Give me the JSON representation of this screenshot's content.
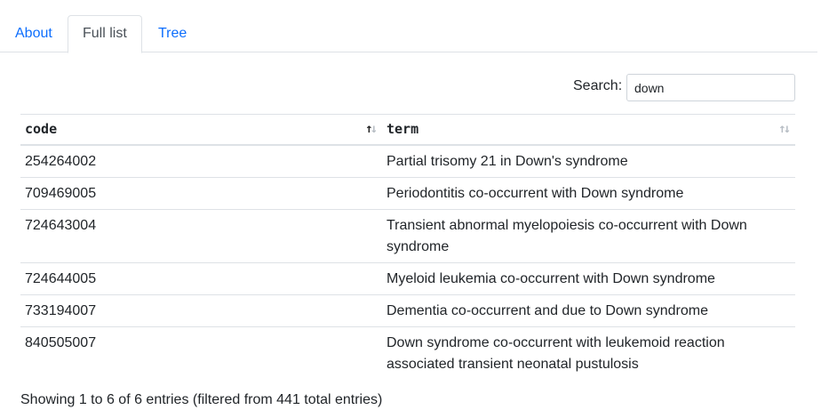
{
  "tabs": [
    {
      "label": "About"
    },
    {
      "label": "Full list"
    },
    {
      "label": "Tree"
    }
  ],
  "search": {
    "label": "Search:",
    "value": "down"
  },
  "table": {
    "columns": [
      "code",
      "term"
    ],
    "rows": [
      {
        "code": "254264002",
        "term": "Partial trisomy 21 in Down's syndrome"
      },
      {
        "code": "709469005",
        "term": "Periodontitis co-occurrent with Down syndrome"
      },
      {
        "code": "724643004",
        "term": "Transient abnormal myelopoiesis co-occurrent with Down syndrome"
      },
      {
        "code": "724644005",
        "term": "Myeloid leukemia co-occurrent with Down syndrome"
      },
      {
        "code": "733194007",
        "term": "Dementia co-occurrent and due to Down syndrome"
      },
      {
        "code": "840505007",
        "term": "Down syndrome co-occurrent with leukemoid reaction associated transient neonatal pustulosis"
      }
    ]
  },
  "info": "Showing 1 to 6 of 6 entries (filtered from 441 total entries)"
}
